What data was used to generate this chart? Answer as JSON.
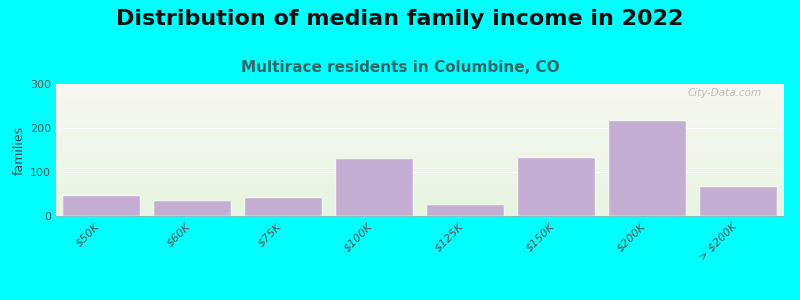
{
  "title": "Distribution of median family income in 2022",
  "subtitle": "Multirace residents in Columbine, CO",
  "ylabel": "families",
  "categories": [
    "$50K",
    "$60K",
    "$75K",
    "$100K",
    "$125K",
    "$150K",
    "$200K",
    "> $200K"
  ],
  "values": [
    45,
    35,
    40,
    130,
    25,
    132,
    215,
    65
  ],
  "bar_color": "#c4aed4",
  "background_outer": "#00ffff",
  "plot_bg_gradient_top": "#f8f8f2",
  "plot_bg_gradient_bottom": "#e8f5e2",
  "ylim": [
    0,
    300
  ],
  "yticks": [
    0,
    100,
    200,
    300
  ],
  "watermark": "City-Data.com",
  "title_fontsize": 16,
  "subtitle_fontsize": 11,
  "subtitle_color": "#336666",
  "ylabel_fontsize": 9,
  "bar_width": 0.85,
  "tick_fontsize": 8
}
